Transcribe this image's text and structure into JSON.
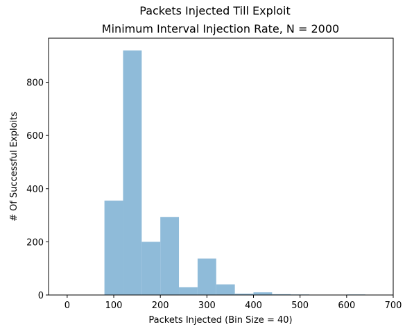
{
  "chart_data": {
    "type": "bar",
    "title": "Packets Injected Till Exploit",
    "subtitle": "Minimum Interval Injection Rate, N = 2000",
    "xlabel": "Packets Injected (Bin Size = 40)",
    "ylabel": "# Of Successful Exploits",
    "bin_size": 40,
    "xlim": [
      -40,
      700
    ],
    "ylim": [
      0,
      966
    ],
    "xticks": [
      0,
      100,
      200,
      300,
      400,
      500,
      600,
      700
    ],
    "yticks": [
      0,
      200,
      400,
      600,
      800
    ],
    "bars_color": "#8fbbd9",
    "bins": [
      {
        "start": 80,
        "end": 120,
        "value": 355
      },
      {
        "start": 120,
        "end": 160,
        "value": 920
      },
      {
        "start": 160,
        "end": 200,
        "value": 200
      },
      {
        "start": 200,
        "end": 240,
        "value": 293
      },
      {
        "start": 240,
        "end": 280,
        "value": 29
      },
      {
        "start": 280,
        "end": 320,
        "value": 137
      },
      {
        "start": 320,
        "end": 360,
        "value": 40
      },
      {
        "start": 360,
        "end": 400,
        "value": 5
      },
      {
        "start": 400,
        "end": 440,
        "value": 10
      },
      {
        "start": 440,
        "end": 480,
        "value": 3
      },
      {
        "start": 480,
        "end": 520,
        "value": 2
      },
      {
        "start": 520,
        "end": 560,
        "value": 1
      },
      {
        "start": 600,
        "end": 640,
        "value": 2
      }
    ],
    "grid": false,
    "legend": "none"
  }
}
